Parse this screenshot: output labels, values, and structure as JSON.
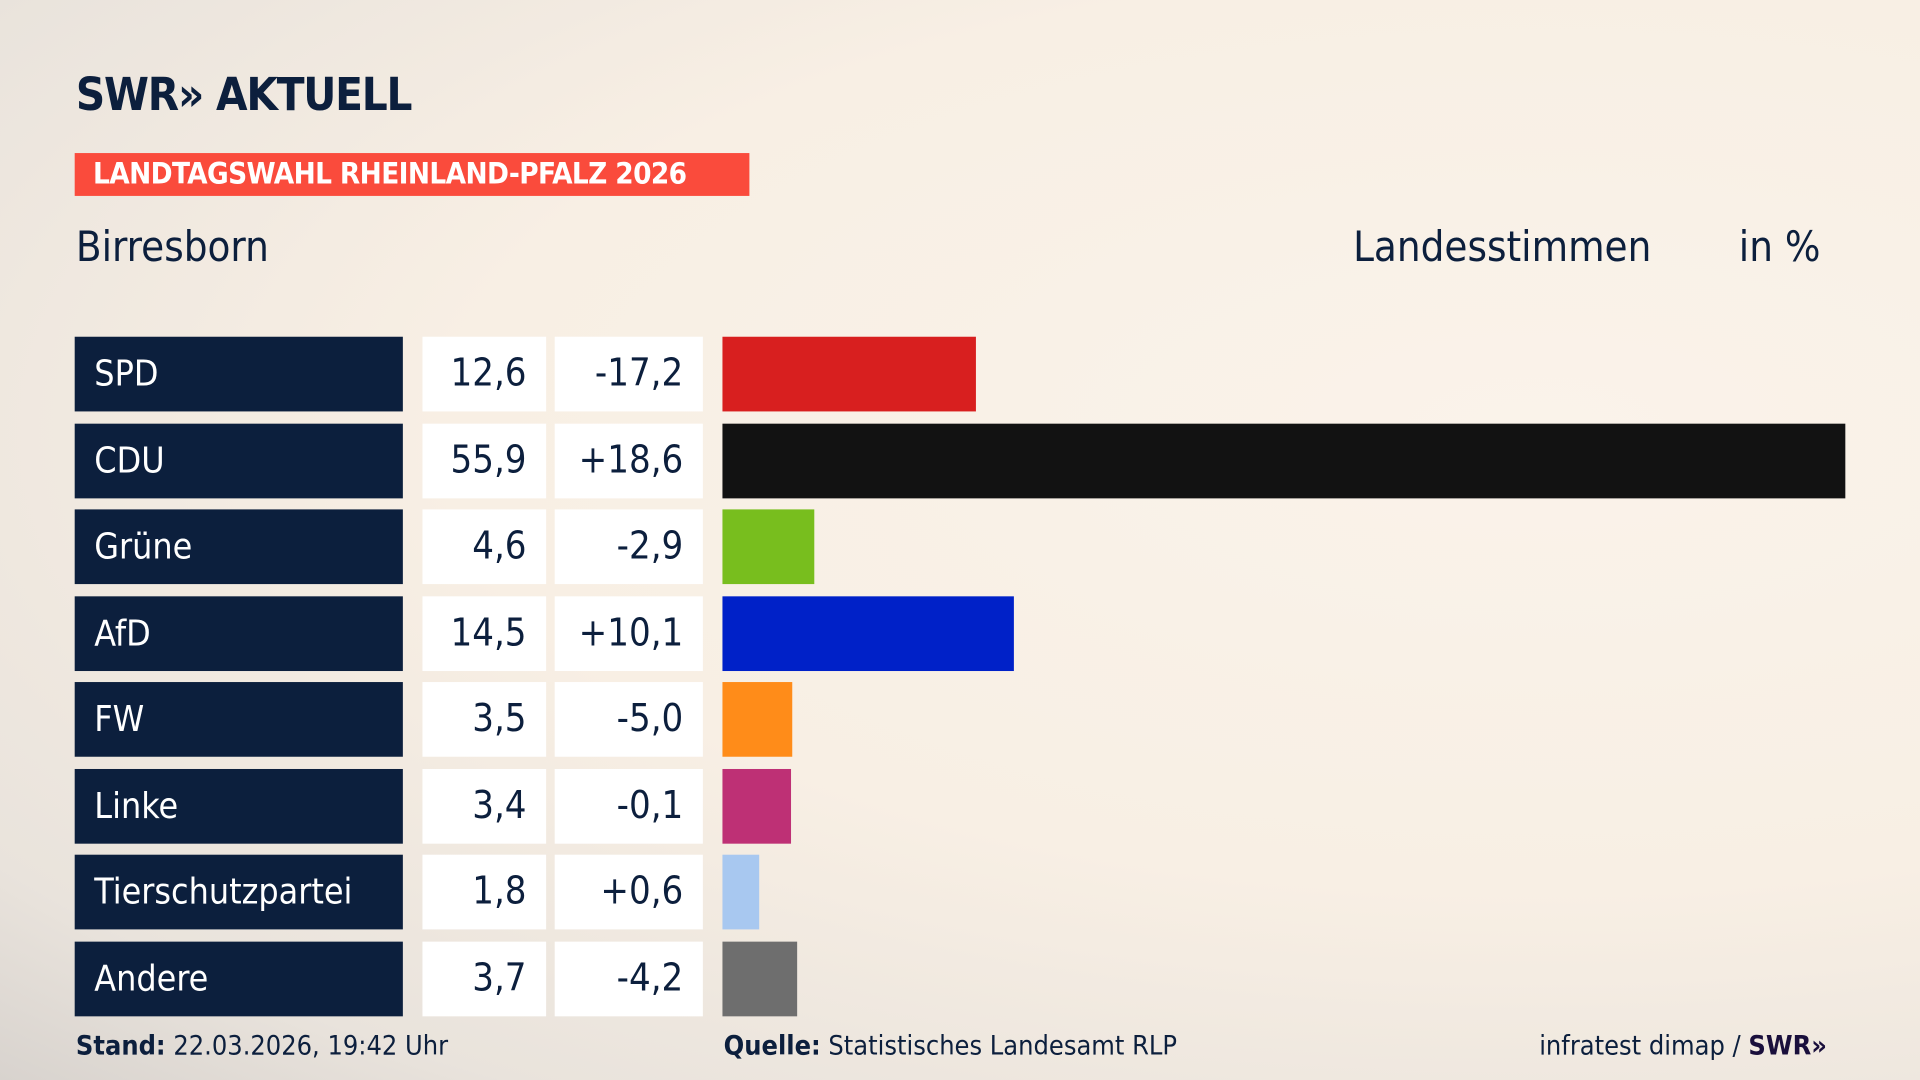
{
  "header": {
    "logo": "SWR» AKTUELL",
    "banner": "LANDTAGSWAHL RHEINLAND-PFALZ 2026",
    "region": "Birresborn",
    "metric": "Landesstimmen",
    "unit": "in %"
  },
  "chart_data": {
    "type": "bar",
    "orientation": "horizontal",
    "categories": [
      "SPD",
      "CDU",
      "Grüne",
      "AfD",
      "FW",
      "Linke",
      "Tierschutzpartei",
      "Andere"
    ],
    "values": [
      12.6,
      55.9,
      4.6,
      14.5,
      3.5,
      3.4,
      1.8,
      3.7
    ],
    "value_labels": [
      "12,6",
      "55,9",
      "4,6",
      "14,5",
      "3,5",
      "3,4",
      "1,8",
      "3,7"
    ],
    "change_labels": [
      "-17,2",
      "+18,6",
      "-2,9",
      "+10,1",
      "-5,0",
      "-0,1",
      "+0,6",
      "-4,2"
    ],
    "colors": [
      "#d81f1f",
      "#121212",
      "#78be1e",
      "#0021c8",
      "#ff8c19",
      "#be3075",
      "#a8c8f0",
      "#6e6e6e"
    ],
    "xlim": [
      0,
      55.9
    ]
  },
  "footer": {
    "stand_label": "Stand:",
    "stand_value": " 22.03.2026, 19:42 Uhr",
    "source_label": "Quelle:",
    "source_value": " Statistisches Landesamt RLP",
    "credit": "infratest dimap / ",
    "credit_logo": "SWR»"
  }
}
